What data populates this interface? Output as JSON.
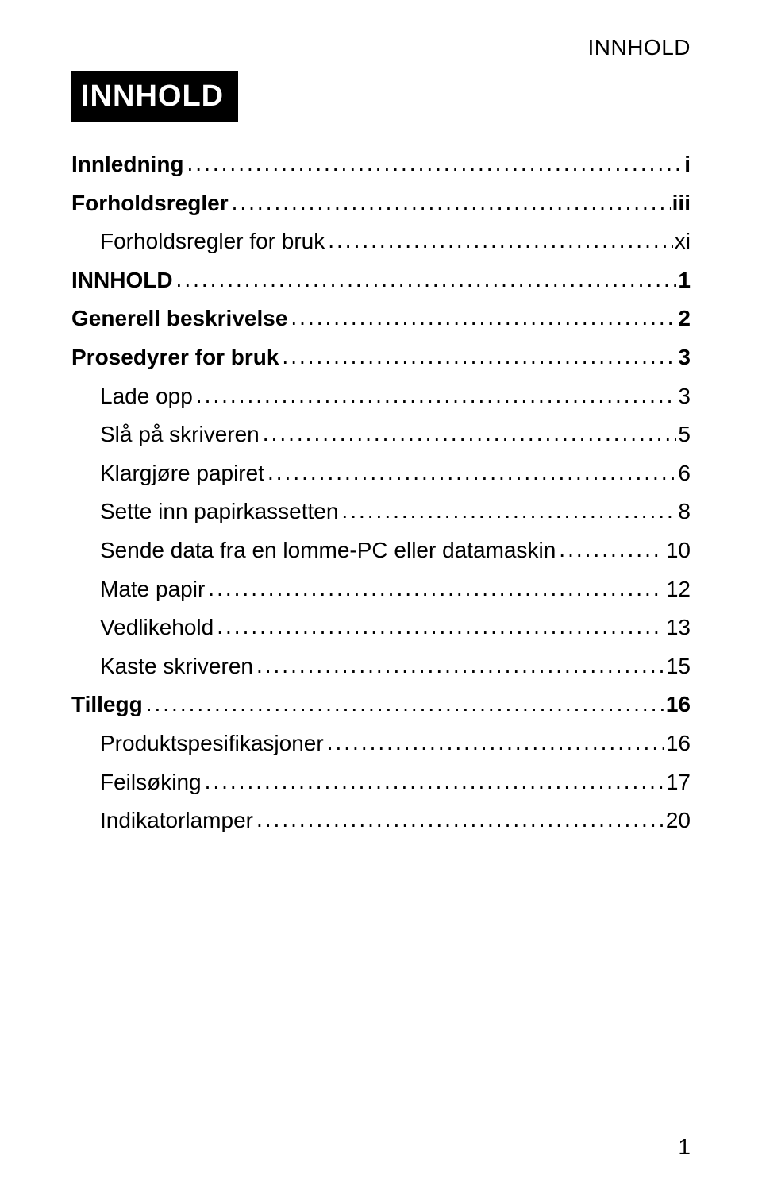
{
  "header": {
    "running": "INNHOLD"
  },
  "title": "INNHOLD",
  "entries": [
    {
      "label": "Innledning",
      "page": "i",
      "bold": true,
      "indent": false
    },
    {
      "label": "Forholdsregler",
      "page": "iii",
      "bold": true,
      "indent": false
    },
    {
      "label": "Forholdsregler for bruk",
      "page": "xi",
      "bold": false,
      "indent": true
    },
    {
      "label": "INNHOLD",
      "page": "1",
      "bold": true,
      "indent": false
    },
    {
      "label": "Generell beskrivelse",
      "page": "2",
      "bold": true,
      "indent": false
    },
    {
      "label": "Prosedyrer for bruk",
      "page": "3",
      "bold": true,
      "indent": false
    },
    {
      "label": "Lade opp",
      "page": "3",
      "bold": false,
      "indent": true
    },
    {
      "label": "Slå på skriveren",
      "page": "5",
      "bold": false,
      "indent": true
    },
    {
      "label": "Klargjøre papiret",
      "page": "6",
      "bold": false,
      "indent": true
    },
    {
      "label": "Sette inn papirkassetten",
      "page": "8",
      "bold": false,
      "indent": true
    },
    {
      "label": "Sende data fra en lomme-PC eller datamaskin",
      "page": "10",
      "bold": false,
      "indent": true
    },
    {
      "label": "Mate papir",
      "page": "12",
      "bold": false,
      "indent": true
    },
    {
      "label": "Vedlikehold",
      "page": "13",
      "bold": false,
      "indent": true
    },
    {
      "label": "Kaste skriveren",
      "page": "15",
      "bold": false,
      "indent": true
    },
    {
      "label": "Tillegg",
      "page": "16",
      "bold": true,
      "indent": false
    },
    {
      "label": "Produktspesifikasjoner",
      "page": "16",
      "bold": false,
      "indent": true
    },
    {
      "label": "Feilsøking",
      "page": "17",
      "bold": false,
      "indent": true
    },
    {
      "label": "Indikatorlamper",
      "page": "20",
      "bold": false,
      "indent": true
    }
  ],
  "footer": {
    "page_number": "1"
  },
  "style": {
    "background_color": "#ffffff",
    "text_color": "#000000",
    "title_bg": "#000000",
    "title_fg": "#ffffff",
    "base_fontsize_pt": 21,
    "title_fontsize_pt": 29
  }
}
